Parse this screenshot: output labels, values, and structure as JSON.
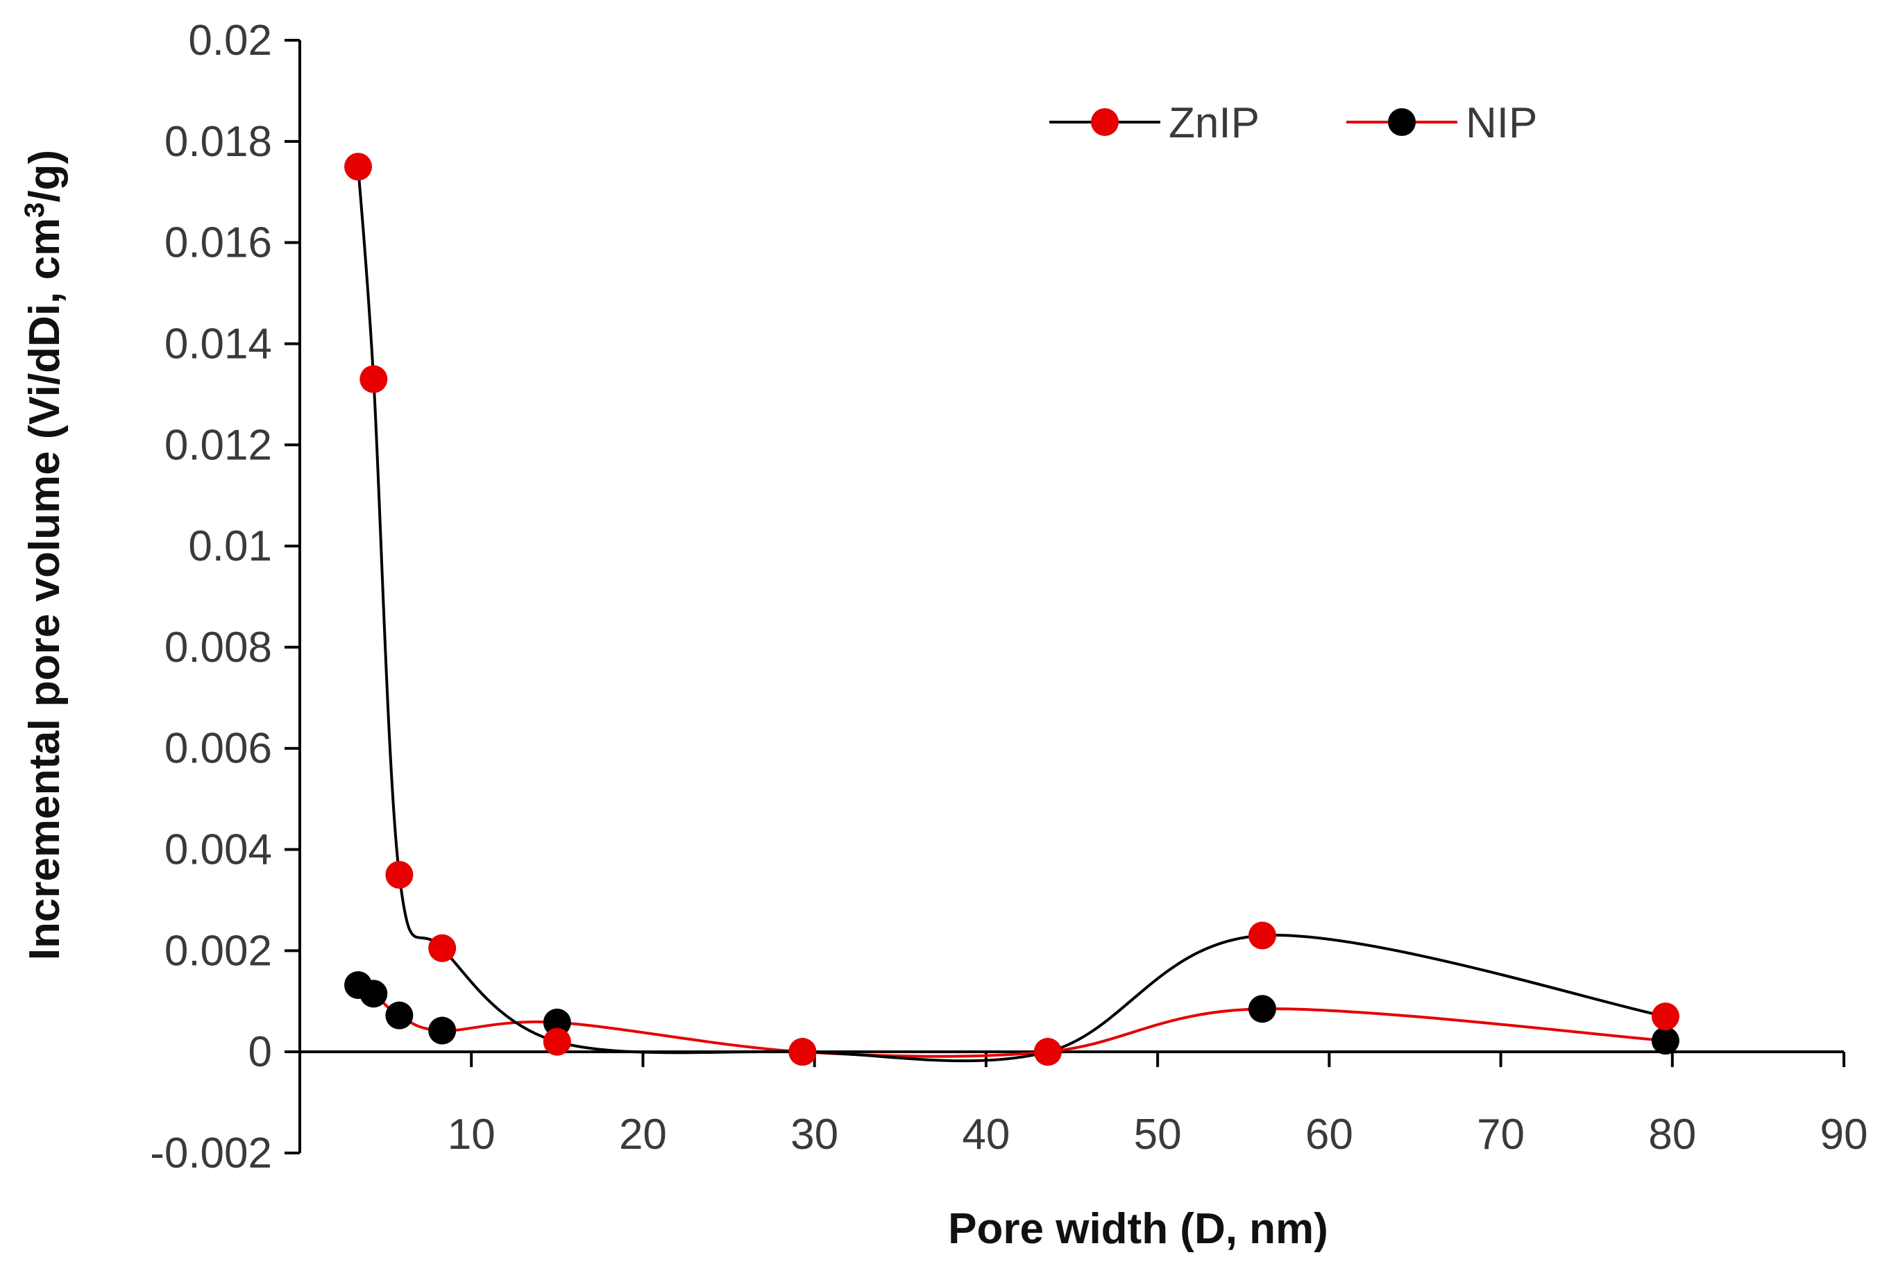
{
  "chart_data": {
    "type": "line",
    "title": "",
    "xlabel": "Pore width (D, nm)",
    "ylabel_main": "Incremental pore volume (Vi/dDi, cm",
    "ylabel_sup": "3",
    "ylabel_tail": "/g)",
    "xlim": [
      0,
      90
    ],
    "ylim": [
      -0.002,
      0.02
    ],
    "x_ticks": [
      10,
      20,
      30,
      40,
      50,
      60,
      70,
      80,
      90
    ],
    "x_tick_labels": [
      "10",
      "20",
      "30",
      "40",
      "50",
      "60",
      "70",
      "80",
      "90"
    ],
    "y_ticks": [
      -0.002,
      0,
      0.002,
      0.004,
      0.006,
      0.008,
      0.01,
      0.012,
      0.014,
      0.016,
      0.018,
      0.02
    ],
    "y_tick_labels": [
      "-0.002",
      "0",
      "0.002",
      "0.004",
      "0.006",
      "0.008",
      "0.01",
      "0.012",
      "0.014",
      "0.016",
      "0.018",
      "0.02"
    ],
    "legend_position": "top-right",
    "series": [
      {
        "name": "ZnIP",
        "line_color": "#000000",
        "marker_color": "#e60000",
        "x": [
          3.4,
          4.3,
          5.8,
          8.3,
          15.0,
          29.3,
          43.6,
          56.1,
          79.6
        ],
        "y": [
          0.0175,
          0.0133,
          0.0035,
          0.00205,
          0.0002,
          0.0,
          0.0,
          0.0023,
          0.0007
        ]
      },
      {
        "name": "NIP",
        "line_color": "#e60000",
        "marker_color": "#000000",
        "x": [
          3.4,
          4.3,
          5.8,
          8.3,
          15.0,
          29.3,
          43.6,
          56.1,
          79.6
        ],
        "y": [
          0.00132,
          0.00115,
          0.00072,
          0.00042,
          0.00058,
          0.0,
          0.0,
          0.00085,
          0.00022
        ]
      }
    ]
  }
}
